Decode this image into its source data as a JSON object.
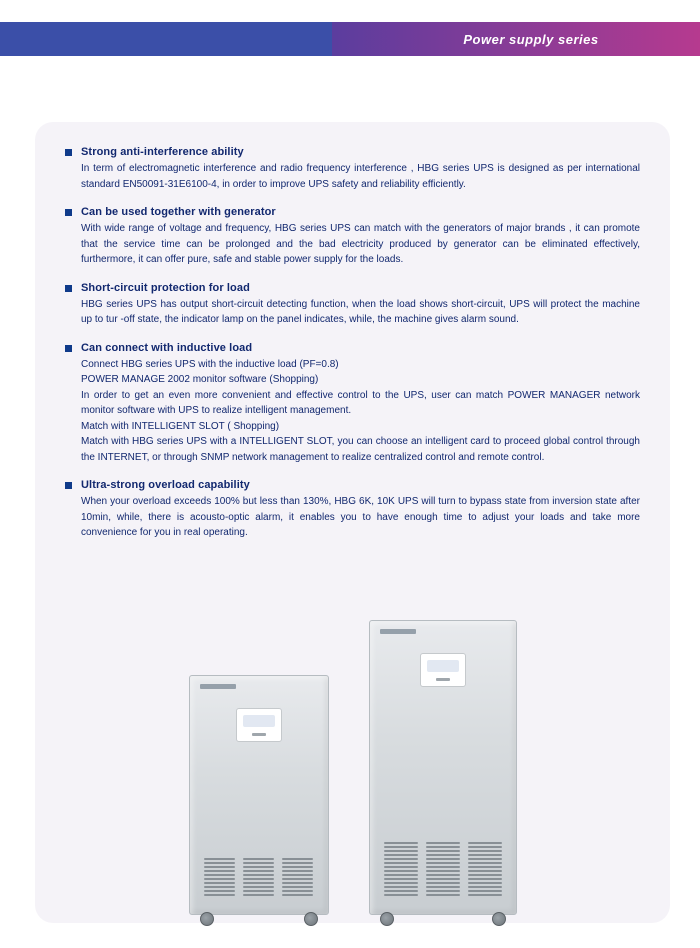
{
  "header": {
    "title": "Power supply series",
    "left_color": "#3b4fa8",
    "gradient_start": "#5b3d9e",
    "gradient_end": "#b63a8f",
    "text_color": "#ffffff"
  },
  "panel": {
    "background": "#f5f3f8",
    "text_color": "#12286f",
    "dot_color": "#0f3a8a"
  },
  "features": [
    {
      "title": "Strong anti-interference ability",
      "body": "In term of electromagnetic interference and radio frequency interference , HBG series UPS is designed as per international standard EN50091-31E6100-4, in order to improve UPS safety and reliability efficiently."
    },
    {
      "title": "Can be used together with generator",
      "body": "With wide range of voltage and frequency, HBG series UPS can match with the generators of major brands , it can promote that the service time can be prolonged and the bad electricity produced by generator can be eliminated effectively, furthermore, it can offer pure, safe and stable power supply for the loads."
    },
    {
      "title": "Short-circuit protection for load",
      "body": "HBG series UPS has output short-circuit detecting function, when the load shows short-circuit, UPS will protect the machine up to tur -off state, the indicator lamp on the panel indicates, while, the machine gives alarm sound."
    },
    {
      "title": "Can connect with inductive load",
      "body": "Connect HBG series UPS with the inductive load (PF=0.8)\nPOWER MANAGE 2002 monitor software (Shopping)\nIn order to get an even more convenient and effective control to the UPS, user can match POWER MANAGER network monitor software with UPS to realize intelligent management.\nMatch with INTELLIGENT SLOT ( Shopping)\nMatch with HBG series UPS with a INTELLIGENT SLOT, you can choose an intelligent card to proceed global control through the INTERNET, or through SNMP network management to realize centralized control and remote control."
    },
    {
      "title": "Ultra-strong overload capability",
      "body": "When your overload exceeds 100% but less than 130%, HBG 6K, 10K UPS will turn to bypass state from inversion state after 10min, while, there is acousto-optic alarm, it enables you to have enough time to adjust your loads and take more convenience for you in real operating."
    }
  ],
  "products": {
    "small_vent_rows": 10,
    "large_vent_rows": 14
  }
}
